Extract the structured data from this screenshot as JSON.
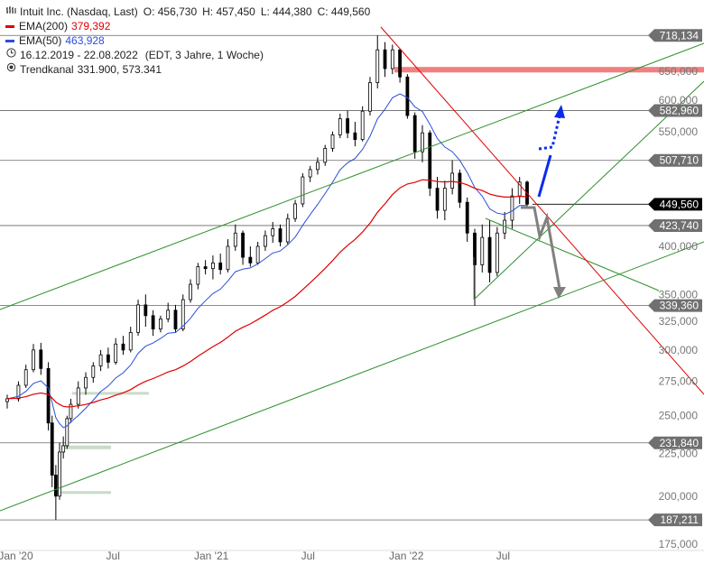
{
  "header": {
    "instrument": "Intuit Inc. (Nasdaq, Last)",
    "open": "O: 456,730",
    "high": "H: 457,450",
    "low": "L: 444,380",
    "close": "C: 449,560"
  },
  "legend": {
    "ema200_label": "EMA(200)",
    "ema200_value": "379,392",
    "ema50_label": "EMA(50)",
    "ema50_value": "463,928",
    "range": "16.12.2019 - 22.08.2022",
    "range_note": "(EDT, 3 Jahre, 1 Woche)",
    "channel_label": "Trendkanal",
    "channel_value": "331.900, 573.341"
  },
  "colors": {
    "ema200": "#e00000",
    "ema50": "#2a4fd6",
    "channel": "#2f8f2f",
    "downtrend": "#e00000",
    "resistance_zone": "#f08080",
    "support_zone": "#c8dcc8",
    "tag_grey": "#707070",
    "tag_black": "#000000",
    "arrow_blue": "#0b2bea",
    "arrow_grey": "#808080"
  },
  "chart_data": {
    "type": "candlestick",
    "y_scale": "log",
    "ylim": [
      172,
      735
    ],
    "x_tick_labels": [
      "Jan '20",
      "Jul",
      "Jan '21",
      "Jul",
      "Jan '22",
      "Jul"
    ],
    "x_tick_dates": [
      "2020-01-01",
      "2020-07-01",
      "2021-01-01",
      "2021-07-01",
      "2022-01-01",
      "2022-07-01"
    ],
    "y_ticks": [
      175,
      200,
      225,
      250,
      275,
      300,
      325,
      350,
      400,
      550,
      600,
      650
    ],
    "y_tick_labels": [
      "175,000",
      "200,000",
      "225,000",
      "250,000",
      "275,000",
      "300,000",
      "325,000",
      "350,000",
      "400,000",
      "550,000",
      "600,000",
      "650,000"
    ],
    "levels": [
      {
        "value": 718.134,
        "label": "718,134",
        "style": "grey"
      },
      {
        "value": 582.96,
        "label": "582,960",
        "style": "grey"
      },
      {
        "value": 507.71,
        "label": "507,710",
        "style": "grey"
      },
      {
        "value": 449.56,
        "label": "449,560",
        "style": "black"
      },
      {
        "value": 423.74,
        "label": "423,740",
        "style": "grey"
      },
      {
        "value": 339.36,
        "label": "339,360",
        "style": "grey"
      },
      {
        "value": 231.84,
        "label": "231,840",
        "style": "grey"
      },
      {
        "value": 187.211,
        "label": "187,211",
        "style": "grey"
      }
    ],
    "candles": [
      {
        "date": "2019-12-16",
        "o": 260,
        "h": 265,
        "l": 255,
        "c": 262
      },
      {
        "date": "2020-01-06",
        "o": 262,
        "h": 275,
        "l": 260,
        "c": 272
      },
      {
        "date": "2020-01-20",
        "o": 272,
        "h": 288,
        "l": 270,
        "c": 284
      },
      {
        "date": "2020-02-03",
        "o": 284,
        "h": 305,
        "l": 282,
        "c": 300
      },
      {
        "date": "2020-02-17",
        "o": 300,
        "h": 306,
        "l": 280,
        "c": 285
      },
      {
        "date": "2020-03-02",
        "o": 285,
        "h": 290,
        "l": 240,
        "c": 245
      },
      {
        "date": "2020-03-09",
        "o": 245,
        "h": 250,
        "l": 205,
        "c": 212
      },
      {
        "date": "2020-03-16",
        "o": 212,
        "h": 218,
        "l": 187.211,
        "c": 200
      },
      {
        "date": "2020-03-23",
        "o": 200,
        "h": 232,
        "l": 198,
        "c": 226
      },
      {
        "date": "2020-03-30",
        "o": 226,
        "h": 236,
        "l": 222,
        "c": 230
      },
      {
        "date": "2020-04-06",
        "o": 230,
        "h": 250,
        "l": 228,
        "c": 248
      },
      {
        "date": "2020-04-13",
        "o": 248,
        "h": 262,
        "l": 245,
        "c": 258
      },
      {
        "date": "2020-04-27",
        "o": 258,
        "h": 275,
        "l": 255,
        "c": 270
      },
      {
        "date": "2020-05-11",
        "o": 270,
        "h": 282,
        "l": 265,
        "c": 278
      },
      {
        "date": "2020-05-25",
        "o": 278,
        "h": 290,
        "l": 274,
        "c": 287
      },
      {
        "date": "2020-06-08",
        "o": 287,
        "h": 300,
        "l": 283,
        "c": 296
      },
      {
        "date": "2020-06-22",
        "o": 296,
        "h": 302,
        "l": 285,
        "c": 290
      },
      {
        "date": "2020-07-06",
        "o": 290,
        "h": 310,
        "l": 288,
        "c": 305
      },
      {
        "date": "2020-07-20",
        "o": 305,
        "h": 312,
        "l": 296,
        "c": 300
      },
      {
        "date": "2020-08-03",
        "o": 300,
        "h": 320,
        "l": 298,
        "c": 315
      },
      {
        "date": "2020-08-17",
        "o": 315,
        "h": 345,
        "l": 312,
        "c": 340
      },
      {
        "date": "2020-08-31",
        "o": 340,
        "h": 350,
        "l": 320,
        "c": 330
      },
      {
        "date": "2020-09-14",
        "o": 330,
        "h": 335,
        "l": 312,
        "c": 318
      },
      {
        "date": "2020-09-28",
        "o": 318,
        "h": 330,
        "l": 315,
        "c": 327
      },
      {
        "date": "2020-10-12",
        "o": 327,
        "h": 342,
        "l": 324,
        "c": 335
      },
      {
        "date": "2020-10-26",
        "o": 335,
        "h": 340,
        "l": 315,
        "c": 318
      },
      {
        "date": "2020-11-09",
        "o": 318,
        "h": 350,
        "l": 316,
        "c": 345
      },
      {
        "date": "2020-11-23",
        "o": 345,
        "h": 365,
        "l": 342,
        "c": 360
      },
      {
        "date": "2020-12-07",
        "o": 360,
        "h": 382,
        "l": 355,
        "c": 378
      },
      {
        "date": "2020-12-21",
        "o": 378,
        "h": 385,
        "l": 370,
        "c": 376
      },
      {
        "date": "2021-01-04",
        "o": 376,
        "h": 390,
        "l": 365,
        "c": 382
      },
      {
        "date": "2021-01-18",
        "o": 382,
        "h": 392,
        "l": 370,
        "c": 375
      },
      {
        "date": "2021-02-01",
        "o": 375,
        "h": 408,
        "l": 372,
        "c": 400
      },
      {
        "date": "2021-02-15",
        "o": 400,
        "h": 425,
        "l": 395,
        "c": 415
      },
      {
        "date": "2021-03-01",
        "o": 415,
        "h": 418,
        "l": 380,
        "c": 388
      },
      {
        "date": "2021-03-15",
        "o": 388,
        "h": 400,
        "l": 378,
        "c": 382
      },
      {
        "date": "2021-03-29",
        "o": 382,
        "h": 405,
        "l": 380,
        "c": 400
      },
      {
        "date": "2021-04-12",
        "o": 400,
        "h": 418,
        "l": 395,
        "c": 412
      },
      {
        "date": "2021-04-26",
        "o": 412,
        "h": 428,
        "l": 404,
        "c": 420
      },
      {
        "date": "2021-05-10",
        "o": 420,
        "h": 425,
        "l": 400,
        "c": 405
      },
      {
        "date": "2021-05-24",
        "o": 405,
        "h": 438,
        "l": 402,
        "c": 432
      },
      {
        "date": "2021-06-07",
        "o": 432,
        "h": 455,
        "l": 428,
        "c": 450
      },
      {
        "date": "2021-06-21",
        "o": 450,
        "h": 490,
        "l": 446,
        "c": 485
      },
      {
        "date": "2021-07-05",
        "o": 485,
        "h": 500,
        "l": 478,
        "c": 495
      },
      {
        "date": "2021-07-19",
        "o": 495,
        "h": 512,
        "l": 488,
        "c": 505
      },
      {
        "date": "2021-08-02",
        "o": 505,
        "h": 530,
        "l": 500,
        "c": 525
      },
      {
        "date": "2021-08-16",
        "o": 525,
        "h": 550,
        "l": 520,
        "c": 545
      },
      {
        "date": "2021-08-30",
        "o": 545,
        "h": 578,
        "l": 540,
        "c": 570
      },
      {
        "date": "2021-09-13",
        "o": 570,
        "h": 583,
        "l": 540,
        "c": 548
      },
      {
        "date": "2021-09-27",
        "o": 548,
        "h": 565,
        "l": 528,
        "c": 538
      },
      {
        "date": "2021-10-11",
        "o": 538,
        "h": 590,
        "l": 535,
        "c": 582
      },
      {
        "date": "2021-10-25",
        "o": 582,
        "h": 640,
        "l": 575,
        "c": 630
      },
      {
        "date": "2021-11-08",
        "o": 630,
        "h": 718.134,
        "l": 620,
        "c": 690
      },
      {
        "date": "2021-11-22",
        "o": 690,
        "h": 705,
        "l": 640,
        "c": 655
      },
      {
        "date": "2021-12-06",
        "o": 655,
        "h": 700,
        "l": 645,
        "c": 690
      },
      {
        "date": "2021-12-20",
        "o": 690,
        "h": 692,
        "l": 630,
        "c": 640
      },
      {
        "date": "2022-01-03",
        "o": 640,
        "h": 645,
        "l": 570,
        "c": 575
      },
      {
        "date": "2022-01-17",
        "o": 575,
        "h": 580,
        "l": 510,
        "c": 520
      },
      {
        "date": "2022-01-31",
        "o": 520,
        "h": 560,
        "l": 505,
        "c": 548
      },
      {
        "date": "2022-02-14",
        "o": 548,
        "h": 552,
        "l": 460,
        "c": 470
      },
      {
        "date": "2022-02-28",
        "o": 470,
        "h": 485,
        "l": 432,
        "c": 442
      },
      {
        "date": "2022-03-14",
        "o": 442,
        "h": 480,
        "l": 430,
        "c": 470
      },
      {
        "date": "2022-03-28",
        "o": 470,
        "h": 508,
        "l": 462,
        "c": 490
      },
      {
        "date": "2022-04-11",
        "o": 490,
        "h": 495,
        "l": 445,
        "c": 452
      },
      {
        "date": "2022-04-25",
        "o": 452,
        "h": 458,
        "l": 405,
        "c": 415
      },
      {
        "date": "2022-05-09",
        "o": 415,
        "h": 420,
        "l": 339.36,
        "c": 380
      },
      {
        "date": "2022-05-23",
        "o": 380,
        "h": 425,
        "l": 372,
        "c": 410
      },
      {
        "date": "2022-06-06",
        "o": 410,
        "h": 430,
        "l": 362,
        "c": 372
      },
      {
        "date": "2022-06-20",
        "o": 372,
        "h": 422,
        "l": 368,
        "c": 415
      },
      {
        "date": "2022-07-04",
        "o": 415,
        "h": 440,
        "l": 408,
        "c": 430
      },
      {
        "date": "2022-07-18",
        "o": 430,
        "h": 470,
        "l": 420,
        "c": 460
      },
      {
        "date": "2022-08-01",
        "o": 460,
        "h": 485,
        "l": 450,
        "c": 478
      },
      {
        "date": "2022-08-15",
        "o": 478,
        "h": 480,
        "l": 444.38,
        "c": 449.56
      }
    ]
  }
}
